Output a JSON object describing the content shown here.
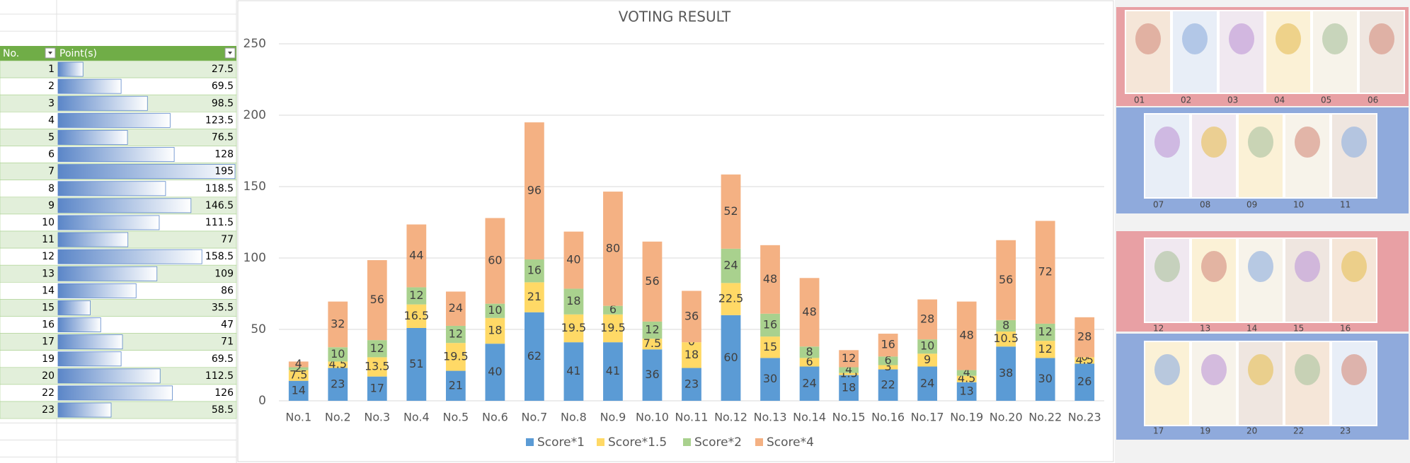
{
  "table": {
    "header": [
      "No.",
      "Point(s)"
    ],
    "rows": [
      [
        1,
        27.5
      ],
      [
        2,
        69.5
      ],
      [
        3,
        98.5
      ],
      [
        4,
        123.5
      ],
      [
        5,
        76.5
      ],
      [
        6,
        128
      ],
      [
        7,
        195
      ],
      [
        8,
        118.5
      ],
      [
        9,
        146.5
      ],
      [
        10,
        111.5
      ],
      [
        11,
        77
      ],
      [
        12,
        158.5
      ],
      [
        13,
        109
      ],
      [
        14,
        86
      ],
      [
        15,
        35.5
      ],
      [
        16,
        47
      ],
      [
        17,
        71
      ],
      [
        19,
        69.5
      ],
      [
        20,
        112.5
      ],
      [
        22,
        126
      ],
      [
        23,
        58.5
      ]
    ]
  },
  "chart_data": {
    "type": "stacked_bar",
    "title": "VOTING RESULT",
    "categories": [
      "No.1",
      "No.2",
      "No.3",
      "No.4",
      "No.5",
      "No.6",
      "No.7",
      "No.8",
      "No.9",
      "No.10",
      "No.11",
      "No.12",
      "No.13",
      "No.14",
      "No.15",
      "No.16",
      "No.17",
      "No.19",
      "No.20",
      "No.22",
      "No.23"
    ],
    "series": [
      {
        "name": "Score*1",
        "color": "#5b9bd5",
        "values": [
          14,
          23,
          17,
          51,
          21,
          40,
          62,
          41,
          41,
          36,
          23,
          60,
          30,
          24,
          18,
          22,
          24,
          13,
          38,
          30,
          26
        ]
      },
      {
        "name": "Score*1.5",
        "color": "#ffd966",
        "values": [
          7.5,
          4.5,
          13.5,
          16.5,
          19.5,
          18,
          21,
          19.5,
          19.5,
          7.5,
          18,
          22.5,
          15,
          6,
          1.5,
          3,
          9,
          4.5,
          10.5,
          12,
          4.5
        ]
      },
      {
        "name": "Score*2",
        "color": "#a9d18e",
        "values": [
          2,
          10,
          12,
          12,
          12,
          10,
          16,
          18,
          6,
          12,
          0,
          24,
          16,
          8,
          4,
          6,
          10,
          4,
          8,
          12,
          0
        ]
      },
      {
        "name": "Score*4",
        "color": "#f4b183",
        "values": [
          4,
          32,
          56,
          44,
          24,
          60,
          96,
          40,
          80,
          56,
          36,
          52,
          48,
          48,
          12,
          16,
          28,
          48,
          56,
          72,
          28
        ]
      }
    ],
    "ylim": [
      0,
      250
    ],
    "yticks": [
      0,
      50,
      100,
      150,
      200,
      250
    ],
    "grid": true,
    "legend": "bottom"
  },
  "gallery": [
    [
      "01",
      "02",
      "03",
      "04",
      "05",
      "06"
    ],
    [
      "07",
      "08",
      "09",
      "10",
      "11"
    ],
    [
      "12",
      "13",
      "14",
      "15",
      "16"
    ],
    [
      "17",
      "19",
      "20",
      "22",
      "23"
    ]
  ]
}
